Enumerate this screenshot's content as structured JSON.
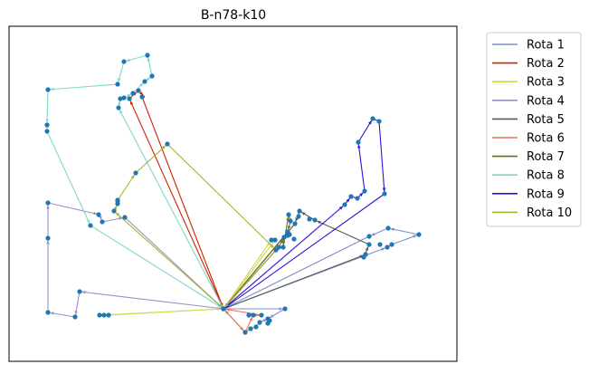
{
  "chart_data": {
    "type": "line",
    "title": "B-n78-k10",
    "xlabel": "",
    "ylabel": "",
    "axes_ticks": "none",
    "grid": false,
    "legend_placement": "outside-upper-right",
    "depot": [
      247,
      341
    ],
    "customers": [
      [
        53,
        99
      ],
      [
        52,
        138
      ],
      [
        52,
        145
      ],
      [
        130,
        93
      ],
      [
        137,
        68
      ],
      [
        163,
        61
      ],
      [
        168,
        84
      ],
      [
        160,
        90
      ],
      [
        153,
        100
      ],
      [
        147,
        103
      ],
      [
        157,
        107
      ],
      [
        143,
        109
      ],
      [
        133,
        109
      ],
      [
        137,
        108
      ],
      [
        131,
        119
      ],
      [
        185,
        159
      ],
      [
        150,
        191
      ],
      [
        130,
        221
      ],
      [
        130,
        225
      ],
      [
        126,
        233
      ],
      [
        113,
        245
      ],
      [
        109,
        237
      ],
      [
        138,
        240
      ],
      [
        100,
        249
      ],
      [
        53,
        224
      ],
      [
        53,
        263
      ],
      [
        53,
        345
      ],
      [
        83,
        350
      ],
      [
        88,
        322
      ],
      [
        110,
        348
      ],
      [
        115,
        348
      ],
      [
        120,
        348
      ],
      [
        275,
        348
      ],
      [
        280,
        348
      ],
      [
        289,
        348
      ],
      [
        296,
        352
      ],
      [
        287,
        356
      ],
      [
        283,
        361
      ],
      [
        277,
        363
      ],
      [
        271,
        367
      ],
      [
        315,
        341
      ],
      [
        300,
        265
      ],
      [
        304,
        265
      ],
      [
        308,
        273
      ],
      [
        314,
        262
      ],
      [
        313,
        273
      ],
      [
        319,
        237
      ],
      [
        321,
        244
      ],
      [
        326,
        247
      ],
      [
        331,
        233
      ],
      [
        320,
        259
      ],
      [
        325,
        264
      ],
      [
        348,
        243
      ],
      [
        408,
        261
      ],
      [
        408,
        270
      ],
      [
        404,
        281
      ],
      [
        402,
        284
      ],
      [
        420,
        270
      ],
      [
        428,
        273
      ],
      [
        433,
        270
      ],
      [
        429,
        252
      ],
      [
        463,
        259
      ],
      [
        381,
        226
      ],
      [
        388,
        217
      ],
      [
        395,
        219
      ],
      [
        403,
        211
      ],
      [
        425,
        214
      ],
      [
        396,
        157
      ],
      [
        412,
        131
      ],
      [
        419,
        134
      ],
      [
        130,
        222
      ],
      [
        305,
        276
      ],
      [
        318,
        260
      ],
      [
        318,
        256
      ],
      [
        330,
        239
      ],
      [
        342,
        242
      ],
      [
        296,
        357
      ],
      [
        298,
        354
      ]
    ],
    "series": [
      {
        "name": "Rota 1",
        "color": "#7f8fcc",
        "points": [
          [
            247,
            341
          ],
          [
            315,
            341
          ],
          [
            296,
            352
          ],
          [
            287,
            356
          ],
          [
            283,
            361
          ],
          [
            277,
            363
          ],
          [
            271,
            367
          ],
          [
            247,
            341
          ],
          [
            428,
            273
          ],
          [
            433,
            270
          ],
          [
            463,
            259
          ],
          [
            429,
            252
          ],
          [
            408,
            261
          ],
          [
            247,
            341
          ]
        ]
      },
      {
        "name": "Rota 2",
        "color": "#cc2200",
        "points": [
          [
            247,
            341
          ],
          [
            143,
            109
          ],
          [
            153,
            100
          ],
          [
            160,
            107
          ],
          [
            157,
            107
          ],
          [
            247,
            341
          ]
        ]
      },
      {
        "name": "Rota 3",
        "color": "#d4d84d",
        "points": [
          [
            247,
            341
          ],
          [
            110,
            348
          ],
          [
            115,
            348
          ],
          [
            120,
            348
          ],
          [
            247,
            341
          ],
          [
            300,
            265
          ],
          [
            304,
            265
          ],
          [
            247,
            341
          ]
        ]
      },
      {
        "name": "Rota 4",
        "color": "#9a8fc2",
        "points": [
          [
            247,
            341
          ],
          [
            88,
            322
          ],
          [
            83,
            350
          ],
          [
            53,
            345
          ],
          [
            53,
            263
          ],
          [
            53,
            224
          ],
          [
            110,
            237
          ],
          [
            113,
            245
          ],
          [
            138,
            240
          ],
          [
            247,
            341
          ]
        ]
      },
      {
        "name": "Rota 5",
        "color": "#5a5a4d",
        "points": [
          [
            247,
            341
          ],
          [
            404,
            281
          ],
          [
            402,
            284
          ],
          [
            408,
            270
          ],
          [
            348,
            243
          ],
          [
            331,
            233
          ],
          [
            326,
            247
          ],
          [
            247,
            341
          ]
        ]
      },
      {
        "name": "Rota 6",
        "color": "#e8734a",
        "points": [
          [
            247,
            341
          ],
          [
            271,
            367
          ],
          [
            280,
            348
          ],
          [
            289,
            348
          ],
          [
            247,
            341
          ]
        ]
      },
      {
        "name": "Rota 7",
        "color": "#6b6a2e",
        "points": [
          [
            247,
            341
          ],
          [
            308,
            273
          ],
          [
            314,
            262
          ],
          [
            313,
            273
          ],
          [
            319,
            237
          ],
          [
            321,
            244
          ],
          [
            318,
            256
          ],
          [
            247,
            341
          ]
        ]
      },
      {
        "name": "Rota 8",
        "color": "#7fd8c8",
        "points": [
          [
            247,
            341
          ],
          [
            131,
            119
          ],
          [
            133,
            109
          ],
          [
            137,
            108
          ],
          [
            147,
            103
          ],
          [
            160,
            90
          ],
          [
            168,
            84
          ],
          [
            163,
            61
          ],
          [
            137,
            68
          ],
          [
            130,
            93
          ],
          [
            53,
            99
          ],
          [
            52,
            138
          ],
          [
            52,
            145
          ],
          [
            100,
            249
          ],
          [
            247,
            341
          ]
        ]
      },
      {
        "name": "Rota 9",
        "color": "#2a12d8",
        "points": [
          [
            247,
            341
          ],
          [
            381,
            226
          ],
          [
            388,
            217
          ],
          [
            395,
            219
          ],
          [
            403,
            211
          ],
          [
            396,
            157
          ],
          [
            412,
            131
          ],
          [
            419,
            134
          ],
          [
            425,
            214
          ],
          [
            247,
            341
          ]
        ]
      },
      {
        "name": "Rota 10",
        "color": "#a3b52a",
        "points": [
          [
            247,
            341
          ],
          [
            126,
            233
          ],
          [
            130,
            225
          ],
          [
            130,
            221
          ],
          [
            150,
            191
          ],
          [
            185,
            159
          ],
          [
            305,
            276
          ],
          [
            247,
            341
          ]
        ]
      }
    ]
  }
}
